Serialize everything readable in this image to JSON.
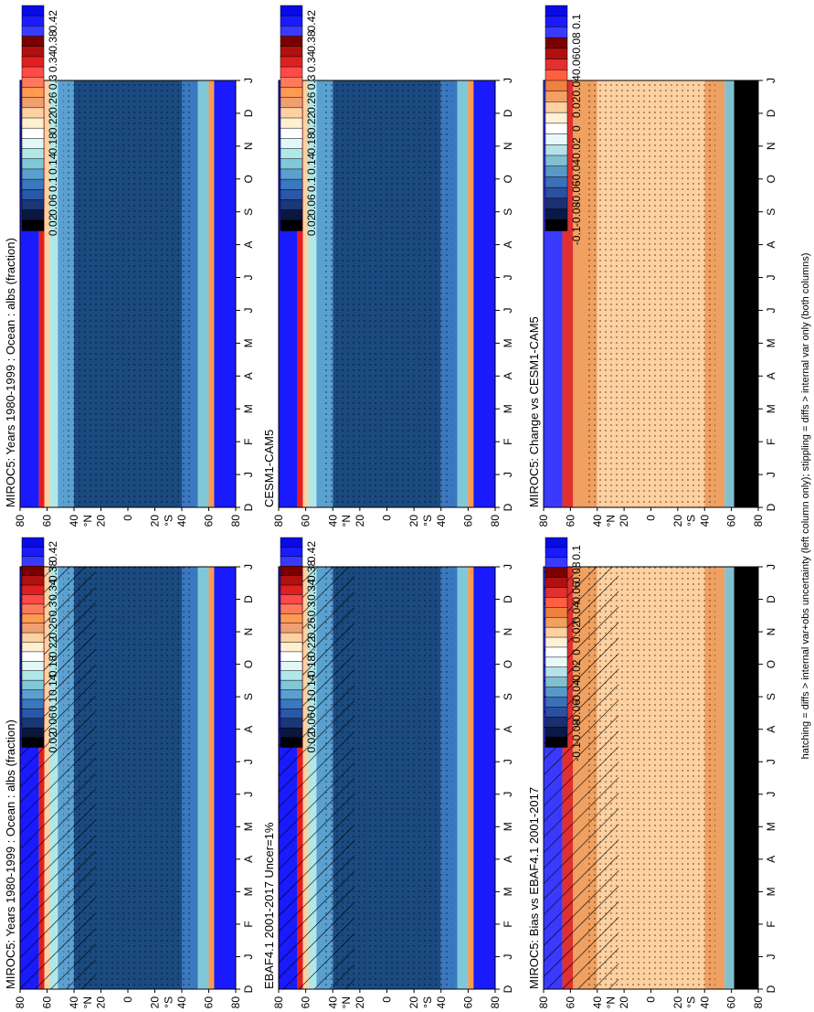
{
  "figure": {
    "footnote": "hatching = diffs > internal var+obs uncertainty (left column only); stippling = diffs > internal var only (both columns)"
  },
  "colorbars": {
    "abs": {
      "labels": [
        "0.42",
        "0.38",
        "0.34",
        "0.3",
        "0.26",
        "0.22",
        "0.18",
        "0.14",
        "0.1",
        "0.06",
        "0.02"
      ],
      "colors": [
        "#0a0ae6",
        "#1a1aff",
        "#3a3aff",
        "#7a0000",
        "#b01010",
        "#e02020",
        "#ff4a4a",
        "#ff7a5a",
        "#ff9a50",
        "#f0a070",
        "#ffd0a0",
        "#fff0d0",
        "#ffffff",
        "#e0f8f8",
        "#b0e8e8",
        "#80c8d8",
        "#5aa0d0",
        "#3a78c0",
        "#2a58a8",
        "#1a3878",
        "#0a1840",
        "#000000"
      ]
    },
    "diff": {
      "labels": [
        "0.1",
        "0.08",
        "0.06",
        "0.04",
        "0.02",
        "0",
        "-0.02",
        "-0.04",
        "-0.06",
        "-0.08",
        "-0.1"
      ],
      "colors": [
        "#0a0ae6",
        "#1a1aff",
        "#3a3aff",
        "#7a0000",
        "#b01010",
        "#e03030",
        "#ff6040",
        "#f08040",
        "#f0a060",
        "#ffd0a0",
        "#fff0d8",
        "#ffffff",
        "#e8f8f8",
        "#b8e0e8",
        "#80c0d0",
        "#5a98c8",
        "#3a70b8",
        "#2a50a0",
        "#1a3070",
        "#0a1848",
        "#000000"
      ]
    }
  },
  "chart_data": [
    {
      "type": "heatmap",
      "title": "MIROC5: Years 1980-1999 : Ocean : albs (fraction)",
      "x_ticks": [
        "D",
        "J",
        "F",
        "M",
        "A",
        "M",
        "J",
        "J",
        "A",
        "S",
        "O",
        "N",
        "D",
        "J"
      ],
      "y_ticks": [
        "80",
        "60",
        "40",
        "20",
        "0",
        "20",
        "40",
        "60",
        "80"
      ],
      "y_hemisphere_labels": [
        "°N",
        "°S"
      ],
      "colorbar": "abs",
      "overlay": "hatch+stipple"
    },
    {
      "type": "heatmap",
      "title": "MIROC5: Years 1980-1999 : Ocean : albs (fraction)",
      "x_ticks": [
        "D",
        "J",
        "F",
        "M",
        "A",
        "M",
        "J",
        "J",
        "A",
        "S",
        "O",
        "N",
        "D",
        "J"
      ],
      "y_ticks": [
        "80",
        "60",
        "40",
        "20",
        "0",
        "20",
        "40",
        "60",
        "80"
      ],
      "y_hemisphere_labels": [
        "°N",
        "°S"
      ],
      "colorbar": "abs",
      "overlay": "stipple"
    },
    {
      "type": "heatmap",
      "title": "EBAF4.1 2001-2017 Uncer=1%",
      "x_ticks": [
        "D",
        "J",
        "F",
        "M",
        "A",
        "M",
        "J",
        "J",
        "A",
        "S",
        "O",
        "N",
        "D",
        "J"
      ],
      "y_ticks": [
        "80",
        "60",
        "40",
        "20",
        "0",
        "20",
        "40",
        "60",
        "80"
      ],
      "y_hemisphere_labels": [
        "°N",
        "°S"
      ],
      "colorbar": "abs",
      "overlay": "hatch+stipple"
    },
    {
      "type": "heatmap",
      "title": "CESM1-CAM5",
      "x_ticks": [
        "D",
        "J",
        "F",
        "M",
        "A",
        "M",
        "J",
        "J",
        "A",
        "S",
        "O",
        "N",
        "D",
        "J"
      ],
      "y_ticks": [
        "80",
        "60",
        "40",
        "20",
        "0",
        "20",
        "40",
        "60",
        "80"
      ],
      "y_hemisphere_labels": [
        "°N",
        "°S"
      ],
      "colorbar": "abs",
      "overlay": "stipple"
    },
    {
      "type": "heatmap",
      "title": "MIROC5: Bias vs EBAF4.1 2001-2017",
      "x_ticks": [
        "D",
        "J",
        "F",
        "M",
        "A",
        "M",
        "J",
        "J",
        "A",
        "S",
        "O",
        "N",
        "D",
        "J"
      ],
      "y_ticks": [
        "80",
        "60",
        "40",
        "20",
        "0",
        "20",
        "40",
        "60",
        "80"
      ],
      "y_hemisphere_labels": [
        "°N",
        "°S"
      ],
      "colorbar": "diff",
      "overlay": "hatch+stipple"
    },
    {
      "type": "heatmap",
      "title": "MIROC5: Change vs CESM1-CAM5",
      "x_ticks": [
        "D",
        "J",
        "F",
        "M",
        "A",
        "M",
        "J",
        "J",
        "A",
        "S",
        "O",
        "N",
        "D",
        "J"
      ],
      "y_ticks": [
        "80",
        "60",
        "40",
        "20",
        "0",
        "20",
        "40",
        "60",
        "80"
      ],
      "y_hemisphere_labels": [
        "°N",
        "°S"
      ],
      "colorbar": "diff",
      "overlay": "stipple"
    }
  ]
}
